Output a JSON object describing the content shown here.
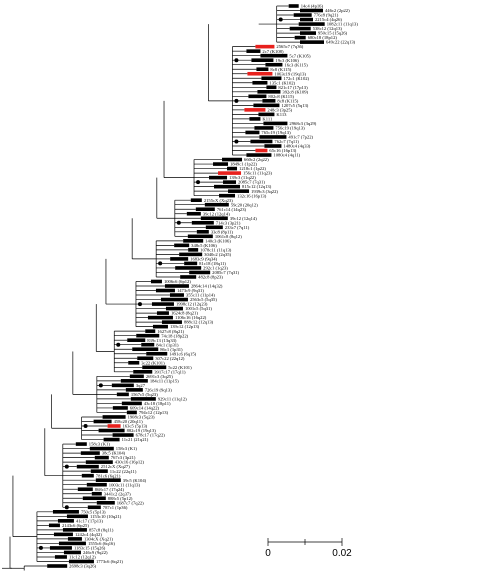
{
  "tree": {
    "colors": {
      "line": "#000000",
      "highlight": "#e8211d"
    },
    "leaves": [
      {
        "label": "14c4 (4p16)"
      },
      {
        "label": "446c2 (2p22)"
      },
      {
        "label": "776c8 (9q21)"
      },
      {
        "label": "2215c4 (4q26)"
      },
      {
        "label": "1082c11 (11q13)"
      },
      {
        "label": "538c12 (12q13)"
      },
      {
        "label": "950c15 (15q26)"
      },
      {
        "label": "680c18 (18p12)"
      },
      {
        "label": "649c22 (22q13)"
      },
      {
        "label": "2565c7 (7q36)",
        "highlight": true
      },
      {
        "label": "2c7 (K108)"
      },
      {
        "label": "5c7 (K105)"
      },
      {
        "label": "19c3 (K106)"
      },
      {
        "label": "16c3 (K115)"
      },
      {
        "label": "8c8 (K115)"
      },
      {
        "label": "1063c19 (19q13)",
        "highlight": true
      },
      {
        "label": "172c1 (K102)"
      },
      {
        "label": "135c1 (K102)"
      },
      {
        "label": "821c17 (17p13)"
      },
      {
        "label": "392c8 (K109)"
      },
      {
        "label": "802c8 (K115)"
      },
      {
        "label": "8c8 (K115)"
      },
      {
        "label": "1207c5 (5q13)"
      },
      {
        "label": "248c3 (3p25)",
        "highlight": true
      },
      {
        "label": "K113"
      },
      {
        "label": "K111"
      },
      {
        "label": "2968c3 (3q29)"
      },
      {
        "label": "756c19 (19q13)"
      },
      {
        "label": "765c19 (19q13)"
      },
      {
        "label": "491c7 (7p22)"
      },
      {
        "label": "762c7 (7q11)"
      },
      {
        "label": "1480c4 (4q33)"
      },
      {
        "label": "65c16 (16p13)",
        "highlight": true
      },
      {
        "label": "1080c4 (4q11)"
      },
      {
        "label": "660c2 (2q22)"
      },
      {
        "label": "1849c1 (1p22)"
      },
      {
        "label": "1218c1 (1p22)"
      },
      {
        "label": "156c11 (11q23)",
        "highlight": true
      },
      {
        "label": "139c3 (11q22)"
      },
      {
        "label": "2085c7 (7q31)"
      },
      {
        "label": "815c12 (12q13)"
      },
      {
        "label": "1939c3 (3q22)"
      },
      {
        "label": "132c16 (16p13)"
      },
      {
        "label": "2155cX (Xq23)"
      },
      {
        "label": "59c20 (20q12)"
      },
      {
        "label": "761c14 (14q23)"
      },
      {
        "label": "39c12 (12q14)"
      },
      {
        "label": "39c12 (12q14)"
      },
      {
        "label": "714c3 (3p21)"
      },
      {
        "label": "233c7 (7q11)"
      },
      {
        "label": "33c8 (8p11)"
      },
      {
        "label": "1061c8 (8q12)"
      },
      {
        "label": "140c3 (K106)"
      },
      {
        "label": "348c5 (K106)"
      },
      {
        "label": "1078c11 (11q13)"
      },
      {
        "label": "3040c2 (2q35)"
      },
      {
        "label": "1683c9 (9q34)"
      },
      {
        "label": "81c18 (18q11)"
      },
      {
        "label": "292c1 (1q23)"
      },
      {
        "label": "2085c7 (7q31)"
      },
      {
        "label": "482c8 (8p23)"
      },
      {
        "label": "1006c6 (6p12)"
      },
      {
        "label": "2864c14 (14q32)"
      },
      {
        "label": "1473c9 (9q31)"
      },
      {
        "label": "355c11 (11p14)"
      },
      {
        "label": "2563c5 (5q35)"
      },
      {
        "label": "1998c12 (12q23)"
      },
      {
        "label": "1001c5 (5q31)"
      },
      {
        "label": "1624c8 (8q21)"
      },
      {
        "label": "1106c16 (16q22)"
      },
      {
        "label": "888c12 (12q13)"
      },
      {
        "label": "139c12 (12p13)"
      },
      {
        "label": "1627c8 (8q21)"
      },
      {
        "label": "74c18 (18p22)"
      },
      {
        "label": "839c13 (13q33)"
      },
      {
        "label": "84c1 (1p31)"
      },
      {
        "label": "86c1 (1p31)"
      },
      {
        "label": "1491c6 (6q15)"
      },
      {
        "label": "307c22 (22q12)"
      },
      {
        "label": "3c22 (K101)"
      },
      {
        "label": "5c22 (K101)"
      },
      {
        "label": "3917c17 (17q11)"
      },
      {
        "label": "2691c3 (3q25)"
      },
      {
        "label": "184c11 (11p15)"
      },
      {
        "label": "3q27"
      },
      {
        "label": "726c19 (9q13)"
      },
      {
        "label": "1567c5 (5q23)"
      },
      {
        "label": "929c11 (11q12)"
      },
      {
        "label": "43c18 (18p11)"
      },
      {
        "label": "609c14 (14q22)"
      },
      {
        "label": "794c12 (12p13)"
      },
      {
        "label": "1908c3 (5q23)"
      },
      {
        "label": "458c20 (20q11)"
      },
      {
        "label": "163c5 (5p13)",
        "highlight": true
      },
      {
        "label": "882c19 (19q13)"
      },
      {
        "label": "678c17 (17q22)"
      },
      {
        "label": "11c21 (21q21)"
      },
      {
        "label": "158c3 (K1)"
      },
      {
        "label": "158c3 (K1)"
      },
      {
        "label": "38c5 (K104)"
      },
      {
        "label": "767c3 (3p21)"
      },
      {
        "label": "430c16 (16p12)"
      },
      {
        "label": "2512cX (Xq27)"
      },
      {
        "label": "11c22 (22q11)"
      },
      {
        "label": "781c6 (6q21)"
      },
      {
        "label": "39c5 (K104)"
      },
      {
        "label": "1003c11 (11q13)"
      },
      {
        "label": "868c17 (17q24)"
      },
      {
        "label": "3441c2 (2q37)"
      },
      {
        "label": "888c5 (5p12)"
      },
      {
        "label": "1687c7 (7q22)"
      },
      {
        "label": "787c1 (1p36)"
      },
      {
        "label": "750c5 (5p13)"
      },
      {
        "label": "1153c10 (10q21)"
      },
      {
        "label": "41c17 (17p13)"
      },
      {
        "label": "2143c6 (6p25)"
      },
      {
        "label": "857c8 (8q11)"
      },
      {
        "label": "1242c4 (4q32)"
      },
      {
        "label": "1304cX (Xq21)"
      },
      {
        "label": "1555c6 (6q16)"
      },
      {
        "label": "1183c15 (15q26)"
      },
      {
        "label": "246c9 (9q22)"
      },
      {
        "label": "11c12 (12q12)"
      },
      {
        "label": "1773c6 (6q21)"
      },
      {
        "label": "2698c3 (3q26)"
      }
    ],
    "scale_bar": {
      "label_start": "0",
      "label_end": "0.02"
    }
  }
}
